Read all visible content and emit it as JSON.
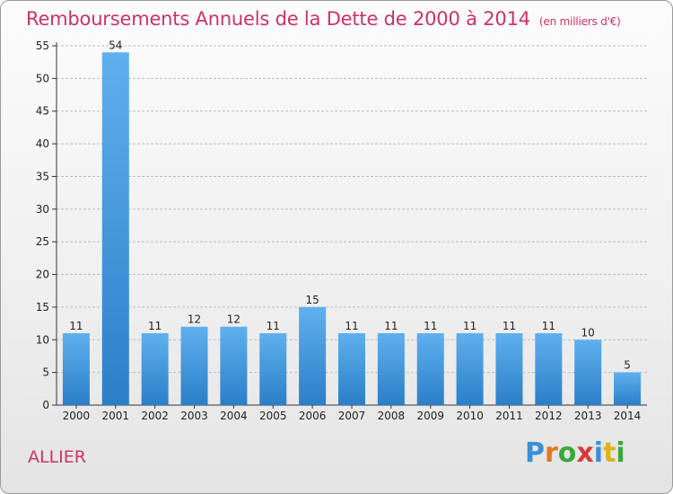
{
  "title": "Remboursements Annuels de la Dette de 2000 à 2014",
  "unit": "(en milliers d'€)",
  "region": "ALLIER",
  "logo": {
    "letters": [
      "P",
      "r",
      "o",
      "x",
      "i",
      "t",
      "i"
    ],
    "colors": [
      "#3a8fd8",
      "#e07b1a",
      "#3aa83a",
      "#d83a3a",
      "#3a8fd8",
      "#e0b21a",
      "#3aa83a"
    ]
  },
  "colors": {
    "bar": "#4a9de0",
    "bar_dark": "#2a7fc8",
    "title": "#cc3366",
    "grid": "#bfbfbf"
  },
  "chart_data": {
    "type": "bar",
    "categories": [
      "2000",
      "2001",
      "2002",
      "2003",
      "2004",
      "2005",
      "2006",
      "2007",
      "2008",
      "2009",
      "2010",
      "2011",
      "2012",
      "2013",
      "2014"
    ],
    "values": [
      11,
      54,
      11,
      12,
      12,
      11,
      15,
      11,
      11,
      11,
      11,
      11,
      11,
      10,
      5
    ],
    "yticks": [
      0,
      5,
      10,
      15,
      20,
      25,
      30,
      35,
      40,
      45,
      50,
      55
    ],
    "ylim": [
      0,
      55
    ],
    "grid": true
  }
}
